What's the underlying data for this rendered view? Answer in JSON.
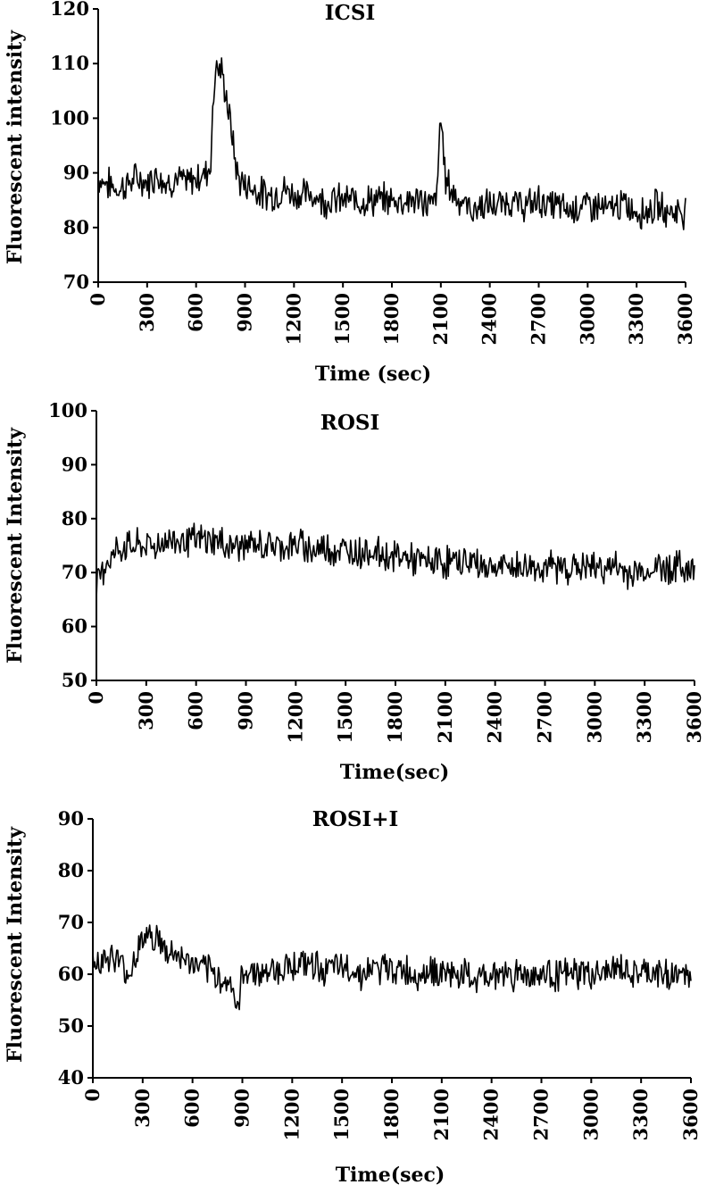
{
  "chart_data": [
    {
      "type": "line",
      "title": "ICSI",
      "xlabel": "Time (sec)",
      "ylabel": "Fluorescent intensity",
      "xlim": [
        0,
        3600
      ],
      "ylim": [
        70,
        120
      ],
      "xticks": [
        "0",
        "300",
        "600",
        "900",
        "1200",
        "1500",
        "1800",
        "2100",
        "2400",
        "2700",
        "3000",
        "3300",
        "3600"
      ],
      "yticks": [
        "70",
        "80",
        "90",
        "100",
        "110",
        "120"
      ],
      "grid": false,
      "legend": "none",
      "series": [
        {
          "x": [
            0,
            60,
            120,
            180,
            240,
            300,
            360,
            420,
            480,
            540,
            600,
            660,
            690,
            700,
            720,
            740,
            760,
            790,
            820,
            850,
            880,
            900,
            960,
            1020,
            1080,
            1140,
            1200,
            1260,
            1320,
            1380,
            1440,
            1500,
            1560,
            1620,
            1680,
            1740,
            1800,
            1860,
            1920,
            1980,
            2040,
            2080,
            2095,
            2110,
            2130,
            2160,
            2190,
            2220,
            2260,
            2300,
            2340,
            2400,
            2460,
            2520,
            2580,
            2640,
            2700,
            2760,
            2820,
            2880,
            2940,
            3000,
            3060,
            3120,
            3180,
            3240,
            3300,
            3360,
            3420,
            3480,
            3540,
            3600
          ],
          "y": [
            89,
            88,
            87,
            88,
            89,
            88,
            90,
            88,
            89,
            88,
            89,
            90,
            92,
            100,
            110,
            109,
            108,
            103,
            97,
            90,
            88,
            88,
            87,
            86,
            86,
            87,
            86,
            86,
            86,
            85,
            85,
            85,
            85,
            85,
            85,
            85,
            85,
            85,
            85,
            85,
            84,
            86,
            101,
            96,
            89,
            87,
            86,
            85,
            84,
            83,
            84,
            84,
            84,
            85,
            84,
            84,
            85,
            84,
            84,
            83,
            84,
            84,
            84,
            83,
            84,
            84,
            83,
            83,
            84,
            83,
            83,
            83
          ]
        }
      ]
    },
    {
      "type": "line",
      "title": "ROSI",
      "xlabel": "Time(sec)",
      "ylabel": "Fluorescent Intensity",
      "xlim": [
        0,
        3600
      ],
      "ylim": [
        50,
        100
      ],
      "xticks": [
        "0",
        "300",
        "600",
        "900",
        "1200",
        "1500",
        "1800",
        "2100",
        "2400",
        "2700",
        "3000",
        "3300",
        "3600"
      ],
      "yticks": [
        "50",
        "60",
        "70",
        "80",
        "90",
        "100"
      ],
      "grid": false,
      "legend": "none",
      "series": [
        {
          "x": [
            0,
            60,
            120,
            180,
            240,
            300,
            360,
            420,
            480,
            540,
            600,
            660,
            720,
            780,
            840,
            900,
            960,
            1020,
            1080,
            1140,
            1200,
            1260,
            1320,
            1380,
            1440,
            1500,
            1560,
            1620,
            1680,
            1740,
            1800,
            1860,
            1920,
            1980,
            2040,
            2100,
            2160,
            2220,
            2280,
            2340,
            2400,
            2460,
            2520,
            2580,
            2640,
            2700,
            2760,
            2820,
            2880,
            2940,
            3000,
            3060,
            3120,
            3180,
            3240,
            3300,
            3360,
            3420,
            3480,
            3540,
            3600
          ],
          "y": [
            68,
            72,
            74,
            75,
            75,
            75,
            75,
            76,
            76,
            76,
            76,
            76,
            76,
            75,
            75,
            75,
            75,
            75,
            75,
            75,
            75,
            75,
            74,
            75,
            74,
            74,
            74,
            74,
            74,
            73,
            73,
            73,
            72,
            72,
            72,
            72,
            72,
            72,
            72,
            71,
            71,
            71,
            71,
            71,
            71,
            71,
            71,
            71,
            71,
            71,
            71,
            71,
            71,
            70,
            70,
            70,
            71,
            71,
            71,
            71,
            70
          ]
        }
      ]
    },
    {
      "type": "line",
      "title": "ROSI+I",
      "xlabel": "Time(sec)",
      "ylabel": "Fluorescent Intensity",
      "xlim": [
        0,
        3600
      ],
      "ylim": [
        40,
        90
      ],
      "xticks": [
        "0",
        "300",
        "600",
        "900",
        "1200",
        "1500",
        "1800",
        "2100",
        "2400",
        "2700",
        "3000",
        "3300",
        "3600"
      ],
      "yticks": [
        "40",
        "50",
        "60",
        "70",
        "80",
        "90"
      ],
      "grid": false,
      "legend": "none",
      "series": [
        {
          "x": [
            0,
            60,
            120,
            180,
            210,
            240,
            270,
            300,
            330,
            360,
            390,
            420,
            450,
            480,
            540,
            600,
            660,
            720,
            780,
            840,
            870,
            900,
            960,
            1020,
            1080,
            1140,
            1200,
            1260,
            1320,
            1380,
            1440,
            1500,
            1560,
            1620,
            1680,
            1740,
            1800,
            1860,
            1920,
            1980,
            2040,
            2100,
            2160,
            2220,
            2280,
            2340,
            2400,
            2460,
            2520,
            2580,
            2640,
            2700,
            2760,
            2820,
            2880,
            2940,
            3000,
            3060,
            3120,
            3180,
            3240,
            3300,
            3360,
            3420,
            3480,
            3540,
            3600
          ],
          "y": [
            63,
            63,
            63,
            62,
            59,
            62,
            65,
            67,
            68,
            67,
            67,
            65,
            64,
            64,
            63,
            62,
            61,
            60,
            59,
            58,
            52,
            60,
            61,
            60,
            61,
            61,
            62,
            62,
            62,
            61,
            61,
            61,
            61,
            60,
            61,
            61,
            61,
            61,
            60,
            60,
            61,
            60,
            60,
            60,
            59,
            59,
            60,
            60,
            60,
            60,
            60,
            60,
            60,
            60,
            60,
            60,
            60,
            60,
            61,
            61,
            60,
            60,
            60,
            60,
            60,
            60,
            59
          ]
        }
      ]
    }
  ]
}
